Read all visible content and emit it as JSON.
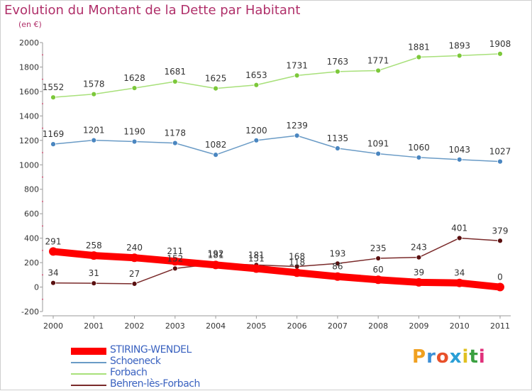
{
  "title": "Evolution du Montant de la Dette par Habitant",
  "subtitle": "(en €)",
  "logo": {
    "text": "Proxiti",
    "colors": [
      "#f0a020",
      "#3d8fd6",
      "#e8502a",
      "#2a9fd6",
      "#e0c020",
      "#3aa040",
      "#e0307a"
    ]
  },
  "chart_data": {
    "type": "line",
    "title": "Evolution du Montant de la Dette par Habitant",
    "subtitle": "(en €)",
    "x": [
      "2000",
      "2001",
      "2002",
      "2003",
      "2004",
      "2005",
      "2006",
      "2007",
      "2008",
      "2009",
      "2010",
      "2011"
    ],
    "ylim": [
      -200,
      2000
    ],
    "yticks": [
      "-200",
      "0",
      "200",
      "400",
      "600",
      "800",
      "1000",
      "1200",
      "1400",
      "1600",
      "1800",
      "2000"
    ],
    "grid": false,
    "legend_position": "bottom-left",
    "series": [
      {
        "name": "STIRING-WENDEL",
        "color": "#ff0000",
        "marker_color": "#ff0000",
        "label_offset": -10,
        "emphasis": true,
        "values": [
          291,
          258,
          240,
          211,
          181,
          151,
          118,
          86,
          60,
          39,
          34,
          0
        ],
        "labels": [
          "291",
          "258",
          "240",
          "211",
          "181",
          "151",
          "118",
          "86",
          "60",
          "39",
          "34",
          "0"
        ]
      },
      {
        "name": "Schoeneck",
        "color": "#6a9bc6",
        "marker_color": "#4a86c0",
        "label_offset": -10,
        "values": [
          1169,
          1201,
          1190,
          1178,
          1082,
          1200,
          1239,
          1135,
          1091,
          1060,
          1043,
          1027
        ],
        "labels": [
          "1169",
          "1201",
          "1190",
          "1178",
          "1082",
          "1200",
          "1239",
          "1135",
          "1091",
          "1060",
          "1043",
          "1027"
        ]
      },
      {
        "name": "Forbach",
        "color": "#a8e07a",
        "marker_color": "#7cc83a",
        "label_offset": -10,
        "values": [
          1552,
          1578,
          1628,
          1681,
          1625,
          1653,
          1731,
          1763,
          1771,
          1881,
          1893,
          1908
        ],
        "labels": [
          "1552",
          "1578",
          "1628",
          "1681",
          "1625",
          "1653",
          "1731",
          "1763",
          "1771",
          "1881",
          "1893",
          "1908"
        ]
      },
      {
        "name": "Behren-lès-Forbach",
        "color": "#7a2a2a",
        "marker_color": "#5a1010",
        "label_offset": -10,
        "values": [
          34,
          31,
          27,
          152,
          192,
          181,
          168,
          193,
          235,
          243,
          401,
          379
        ],
        "labels": [
          "34",
          "31",
          "27",
          "152",
          "192",
          "181",
          "168",
          "193",
          "235",
          "243",
          "401",
          "379"
        ]
      }
    ]
  }
}
